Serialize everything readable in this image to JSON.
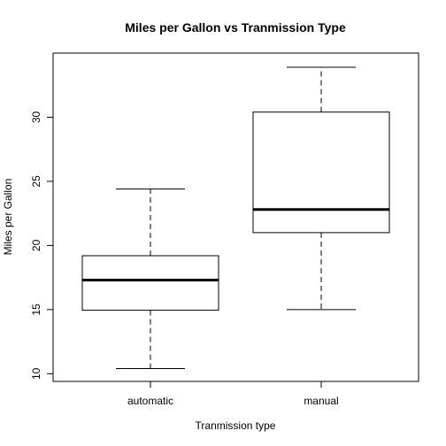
{
  "chart_data": {
    "type": "box",
    "title": "Miles per Gallon vs Tranmission Type",
    "xlabel": "Tranmission type",
    "ylabel": "Miles per Gallon",
    "ylim": [
      9.4,
      35.0
    ],
    "yticks": [
      10,
      15,
      20,
      25,
      30
    ],
    "grid": false,
    "categories": [
      "automatic",
      "manual"
    ],
    "boxes": [
      {
        "category": "automatic",
        "min": 10.4,
        "q1": 14.95,
        "median": 17.3,
        "q3": 19.2,
        "max": 24.4
      },
      {
        "category": "manual",
        "min": 15.0,
        "q1": 21.0,
        "median": 22.8,
        "q3": 30.4,
        "max": 33.9
      }
    ]
  }
}
